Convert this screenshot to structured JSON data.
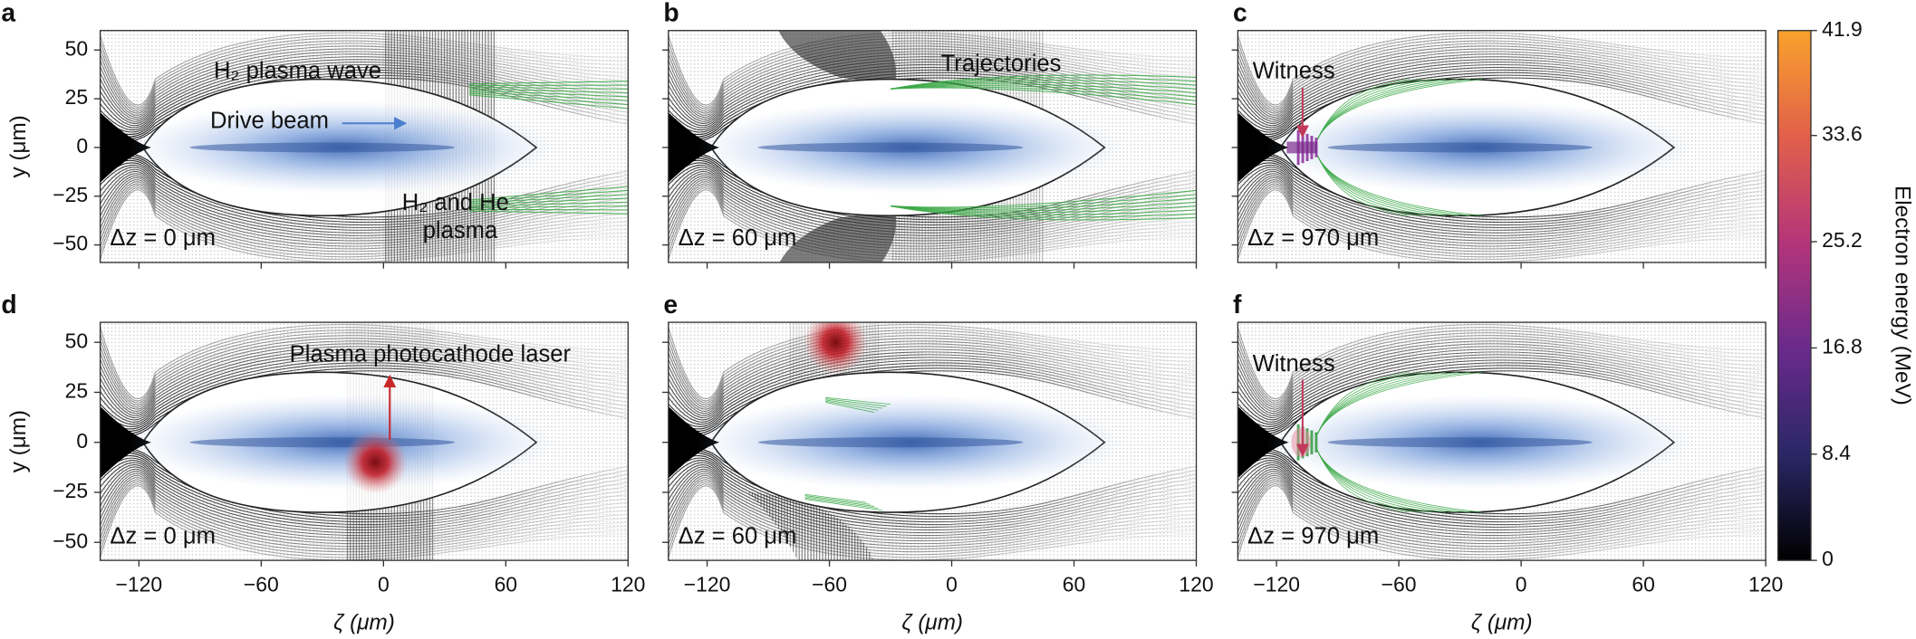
{
  "chart_data": [
    {
      "type": "image",
      "panel": "a",
      "caption": "Δz = 0 μm",
      "ylabel": "y (μm)",
      "xlim": [
        -139,
        120
      ],
      "ylim": [
        -59,
        60
      ],
      "xticks": [
        {
          "value": -120,
          "label": "−120"
        },
        {
          "value": -60,
          "label": "−60"
        },
        0,
        60,
        120
      ],
      "yticks": [
        50,
        25,
        0,
        {
          "value": -25,
          "label": "−25"
        },
        {
          "value": -50,
          "label": "−50"
        }
      ],
      "annotations": [
        {
          "text": "H₂ plasma wave",
          "color": "#111111"
        },
        {
          "text": "Drive beam",
          "color": "#4a7fcf"
        },
        {
          "text": "H₂ and He",
          "color": "#111111"
        },
        {
          "text": "plasma",
          "color": "#111111"
        }
      ]
    },
    {
      "type": "image",
      "panel": "b",
      "caption": "Δz = 60 μm",
      "xlim": [
        -139,
        120
      ],
      "ylim": [
        -59,
        60
      ],
      "xticks": [
        {
          "value": -120,
          "label": "−120"
        },
        {
          "value": -60,
          "label": "−60"
        },
        0,
        60,
        120
      ],
      "yticks": [
        50,
        25,
        0,
        {
          "value": -25,
          "label": "−25"
        },
        {
          "value": -50,
          "label": "−50"
        }
      ],
      "annotations": [
        {
          "text": "Trajectories",
          "color": "#2f9a3c"
        }
      ]
    },
    {
      "type": "image",
      "panel": "c",
      "caption": "Δz = 970 μm",
      "xlim": [
        -139,
        120
      ],
      "ylim": [
        -59,
        60
      ],
      "xticks": [
        {
          "value": -120,
          "label": "−120"
        },
        {
          "value": -60,
          "label": "−60"
        },
        0,
        60,
        120
      ],
      "yticks": [
        50,
        25,
        0,
        {
          "value": -25,
          "label": "−25"
        },
        {
          "value": -50,
          "label": "−50"
        }
      ],
      "annotations": [
        {
          "text": "Witness",
          "color": "#c2395c"
        }
      ]
    },
    {
      "type": "image",
      "panel": "d",
      "caption": "Δz = 0 μm",
      "ylabel": "y (μm)",
      "xlabel": "ζ (μm)",
      "xlim": [
        -139,
        120
      ],
      "ylim": [
        -59,
        60
      ],
      "xticks": [
        {
          "value": -120,
          "label": "−120"
        },
        {
          "value": -60,
          "label": "−60"
        },
        0,
        60,
        120
      ],
      "yticks": [
        50,
        25,
        0,
        {
          "value": -25,
          "label": "−25"
        },
        {
          "value": -50,
          "label": "−50"
        }
      ],
      "annotations": [
        {
          "text": "Plasma photocathode laser",
          "color": "#c8282a"
        }
      ]
    },
    {
      "type": "image",
      "panel": "e",
      "caption": "Δz = 60 μm",
      "xlabel": "ζ (μm)",
      "xlim": [
        -139,
        120
      ],
      "ylim": [
        -59,
        60
      ],
      "xticks": [
        {
          "value": -120,
          "label": "−120"
        },
        {
          "value": -60,
          "label": "−60"
        },
        0,
        60,
        120
      ],
      "yticks": [
        50,
        25,
        0,
        {
          "value": -25,
          "label": "−25"
        },
        {
          "value": -50,
          "label": "−50"
        }
      ],
      "annotations": []
    },
    {
      "type": "image",
      "panel": "f",
      "caption": "Δz = 970 μm",
      "xlabel": "ζ (μm)",
      "xlim": [
        -139,
        120
      ],
      "ylim": [
        -59,
        60
      ],
      "xticks": [
        {
          "value": -120,
          "label": "−120"
        },
        {
          "value": -60,
          "label": "−60"
        },
        0,
        60,
        120
      ],
      "yticks": [
        50,
        25,
        0,
        {
          "value": -25,
          "label": "−25"
        },
        {
          "value": -50,
          "label": "−50"
        }
      ],
      "annotations": [
        {
          "text": "Witness",
          "color": "#c2395c"
        }
      ]
    },
    {
      "type": "colorbar",
      "label": "Electron energy (MeV)",
      "ylim": [
        0,
        41.9
      ],
      "yticks": [
        0,
        8.4,
        16.8,
        25.2,
        33.6,
        41.9
      ],
      "colors": [
        "#000000",
        "#2a2766",
        "#6a2a8c",
        "#b4357a",
        "#e2604a",
        "#f9a22c"
      ]
    }
  ]
}
